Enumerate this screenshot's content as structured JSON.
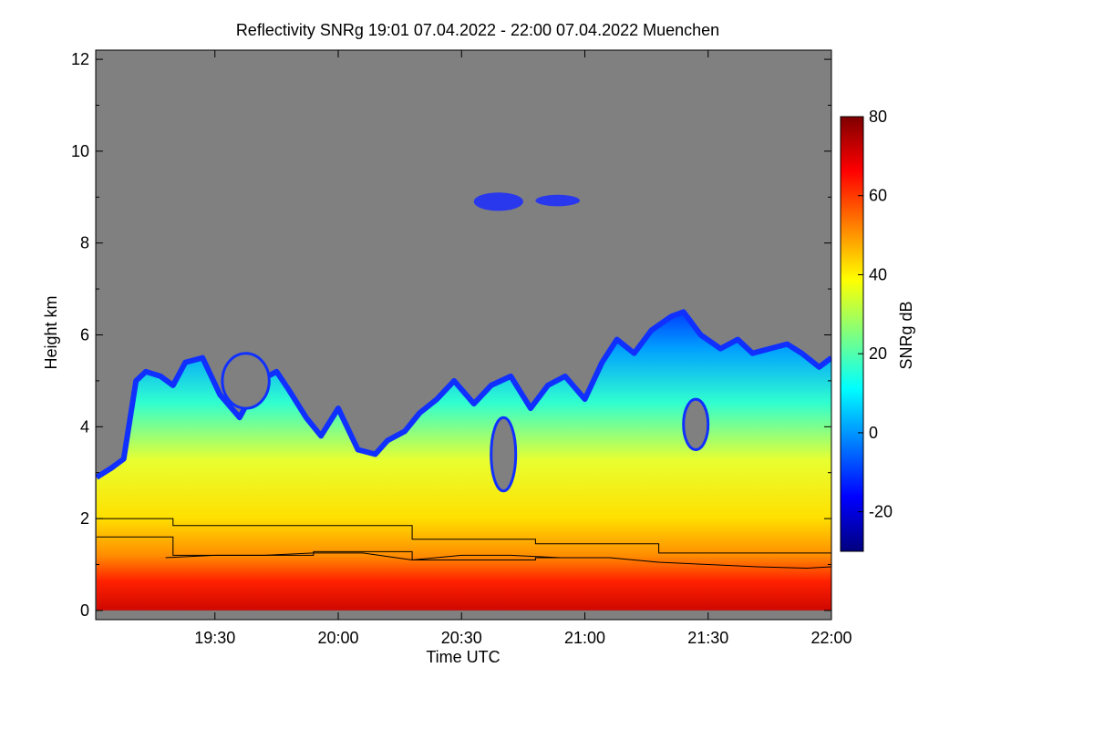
{
  "chart_data": {
    "type": "heatmap",
    "title": "Reflectivity SNRg   19:01 07.04.2022 - 22:00 07.04.2022 Muenchen",
    "xlabel": "Time UTC",
    "ylabel": "Height km",
    "colorbar_label": "SNRg dB",
    "xlim": [
      "19:01",
      "22:00"
    ],
    "ylim": [
      -0.2,
      12.2
    ],
    "x_ticks": [
      "19:30",
      "20:00",
      "20:30",
      "21:00",
      "21:30",
      "22:00"
    ],
    "y_ticks": [
      0,
      2,
      4,
      6,
      8,
      10,
      12
    ],
    "colorbar_range": [
      -30,
      80
    ],
    "colorbar_ticks": [
      -20,
      0,
      20,
      40,
      60,
      80
    ],
    "no_data_color": "#808080",
    "colormap": [
      "#00007f",
      "#0000ff",
      "#007fff",
      "#00ffff",
      "#7fff7f",
      "#ffff00",
      "#ff7f00",
      "#ff0000",
      "#7f0000"
    ],
    "cloud_top_km": [
      [
        19.02,
        2.9
      ],
      [
        19.08,
        3.1
      ],
      [
        19.13,
        3.3
      ],
      [
        19.18,
        5.0
      ],
      [
        19.22,
        5.2
      ],
      [
        19.28,
        5.1
      ],
      [
        19.33,
        4.9
      ],
      [
        19.38,
        5.4
      ],
      [
        19.45,
        5.5
      ],
      [
        19.52,
        4.7
      ],
      [
        19.6,
        4.2
      ],
      [
        19.68,
        5.0
      ],
      [
        19.75,
        5.2
      ],
      [
        19.8,
        4.8
      ],
      [
        19.87,
        4.2
      ],
      [
        19.93,
        3.8
      ],
      [
        20.0,
        4.4
      ],
      [
        20.08,
        3.5
      ],
      [
        20.15,
        3.4
      ],
      [
        20.2,
        3.7
      ],
      [
        20.27,
        3.9
      ],
      [
        20.33,
        4.3
      ],
      [
        20.4,
        4.6
      ],
      [
        20.47,
        5.0
      ],
      [
        20.55,
        4.5
      ],
      [
        20.62,
        4.9
      ],
      [
        20.7,
        5.1
      ],
      [
        20.78,
        4.4
      ],
      [
        20.85,
        4.9
      ],
      [
        20.92,
        5.1
      ],
      [
        21.0,
        4.6
      ],
      [
        21.07,
        5.4
      ],
      [
        21.13,
        5.9
      ],
      [
        21.2,
        5.6
      ],
      [
        21.27,
        6.1
      ],
      [
        21.35,
        6.4
      ],
      [
        21.4,
        6.5
      ],
      [
        21.47,
        6.0
      ],
      [
        21.55,
        5.7
      ],
      [
        21.62,
        5.9
      ],
      [
        21.68,
        5.6
      ],
      [
        21.75,
        5.7
      ],
      [
        21.82,
        5.8
      ],
      [
        21.88,
        5.6
      ],
      [
        21.95,
        5.3
      ],
      [
        22.0,
        5.5
      ]
    ],
    "gap_regions": [
      {
        "x": [
          19.53,
          19.72
        ],
        "y": [
          4.4,
          5.6
        ]
      },
      {
        "x": [
          20.62,
          20.72
        ],
        "y": [
          2.6,
          4.2
        ]
      },
      {
        "x": [
          21.4,
          21.5
        ],
        "y": [
          3.5,
          4.6
        ]
      }
    ],
    "melting_layer_line": [
      [
        19.3,
        1.15
      ],
      [
        19.5,
        1.2
      ],
      [
        19.7,
        1.2
      ],
      [
        19.9,
        1.25
      ],
      [
        20.1,
        1.25
      ],
      [
        20.3,
        1.1
      ],
      [
        20.5,
        1.2
      ],
      [
        20.7,
        1.2
      ],
      [
        20.9,
        1.15
      ],
      [
        21.1,
        1.15
      ],
      [
        21.3,
        1.05
      ],
      [
        21.5,
        1.0
      ],
      [
        21.7,
        0.95
      ],
      [
        21.9,
        0.92
      ],
      [
        22.0,
        0.95
      ]
    ],
    "step_line": [
      [
        19.02,
        2.0
      ],
      [
        19.33,
        2.0
      ],
      [
        19.33,
        1.85
      ],
      [
        20.3,
        1.85
      ],
      [
        20.3,
        1.55
      ],
      [
        20.8,
        1.55
      ],
      [
        20.8,
        1.45
      ],
      [
        21.3,
        1.45
      ],
      [
        21.3,
        1.25
      ],
      [
        22.0,
        1.25
      ]
    ],
    "lower_step_line": [
      [
        19.02,
        1.6
      ],
      [
        19.33,
        1.6
      ],
      [
        19.33,
        1.2
      ],
      [
        19.9,
        1.2
      ],
      [
        19.9,
        1.28
      ],
      [
        20.3,
        1.28
      ],
      [
        20.3,
        1.1
      ],
      [
        20.8,
        1.1
      ],
      [
        20.8,
        1.15
      ],
      [
        21.0,
        1.15
      ]
    ],
    "upper_cloud_patches": [
      {
        "x": [
          20.55,
          20.75
        ],
        "y": [
          8.7,
          9.1
        ]
      },
      {
        "x": [
          20.8,
          20.98
        ],
        "y": [
          8.8,
          9.05
        ]
      }
    ]
  }
}
